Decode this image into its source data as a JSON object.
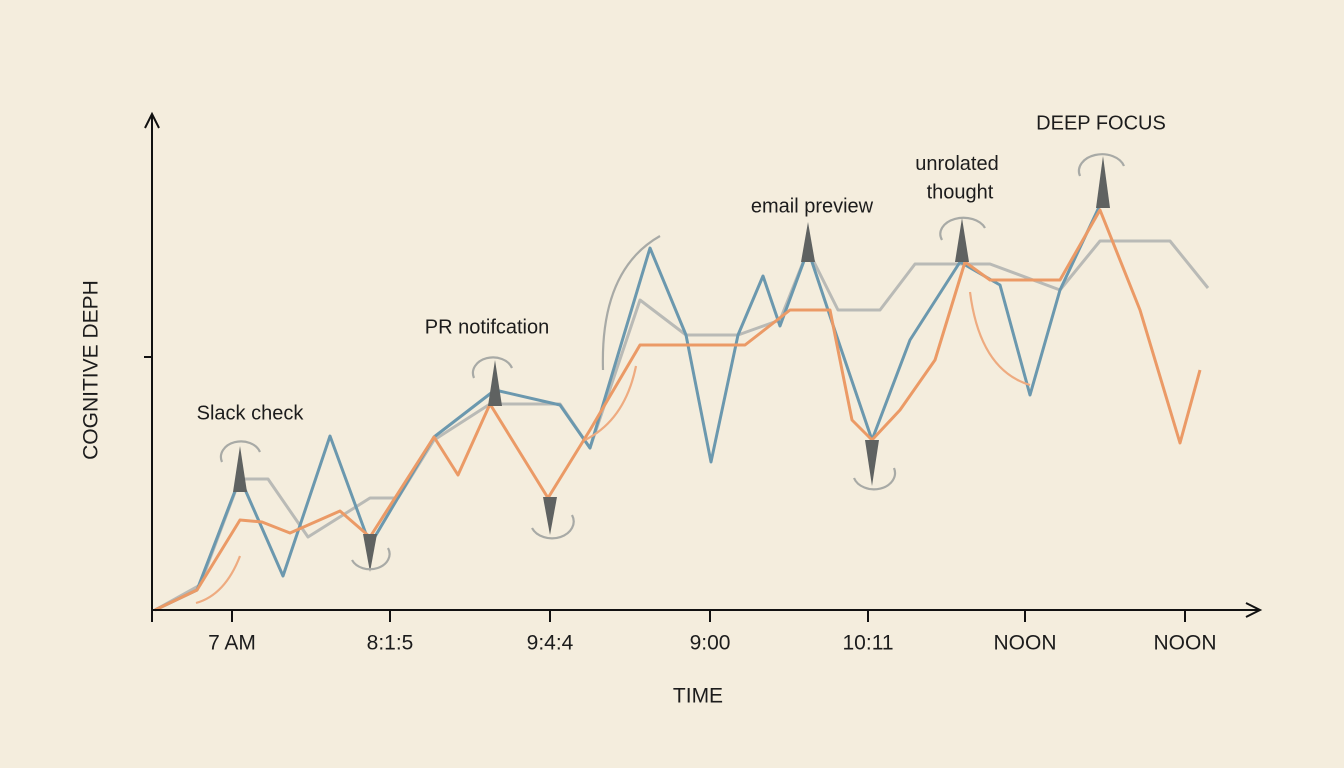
{
  "chart_data": {
    "type": "line",
    "x_label": "TIME",
    "y_label": "COGNITIVE DEPH",
    "xlim": [
      0,
      1106
    ],
    "ylim": [
      0,
      506
    ],
    "xticks": [
      {
        "value": 80,
        "label": "7 AM"
      },
      {
        "value": 238,
        "label": "8:1:5"
      },
      {
        "value": 398,
        "label": "9:4:4"
      },
      {
        "value": 558,
        "label": "9:00"
      },
      {
        "value": 716,
        "label": "10:11"
      },
      {
        "value": 873,
        "label": "NOON"
      },
      {
        "value": 1033,
        "label": "NOON"
      }
    ],
    "yticks": [
      253
    ],
    "annotations": [
      "Slack check",
      "PR notifcation",
      "email preview",
      "unrolated thought",
      "DEEP FOCUS"
    ],
    "series": [
      {
        "color": "#6b98ae",
        "x": [
          3,
          45,
          88,
          131,
          178,
          218,
          282,
          343,
          408,
          438,
          498,
          534,
          559,
          586,
          611,
          628,
          656,
          686,
          720,
          758,
          808,
          848,
          878,
          908,
          948
        ],
        "values": [
          0,
          20,
          132,
          34,
          174,
          65,
          173,
          220,
          205,
          162,
          362,
          275,
          148,
          275,
          334,
          284,
          360,
          270,
          170,
          270,
          348,
          325,
          215,
          320,
          405
        ]
      },
      {
        "color": "#b9bab6",
        "x": [
          3,
          48,
          88,
          116,
          156,
          218,
          246,
          282,
          338,
          408,
          438,
          488,
          534,
          586,
          628,
          656,
          686,
          728,
          763,
          808,
          838,
          908,
          948,
          1018,
          1056
        ],
        "values": [
          0,
          25,
          131,
          131,
          73,
          112,
          112,
          170,
          206,
          206,
          162,
          310,
          275,
          275,
          290,
          360,
          300,
          300,
          346,
          346,
          346,
          320,
          369,
          369,
          322
        ]
      },
      {
        "color": "#eb9a66",
        "x": [
          3,
          45,
          88,
          110,
          138,
          188,
          218,
          282,
          306,
          338,
          396,
          438,
          488,
          593,
          638,
          678,
          700,
          720,
          748,
          783,
          813,
          838,
          908,
          948,
          988,
          1028,
          1048
        ],
        "values": [
          0,
          20,
          90,
          88,
          77,
          99,
          73,
          173,
          135,
          206,
          112,
          180,
          265,
          265,
          300,
          300,
          190,
          170,
          200,
          250,
          348,
          330,
          330,
          400,
          300,
          167,
          240
        ]
      }
    ]
  }
}
